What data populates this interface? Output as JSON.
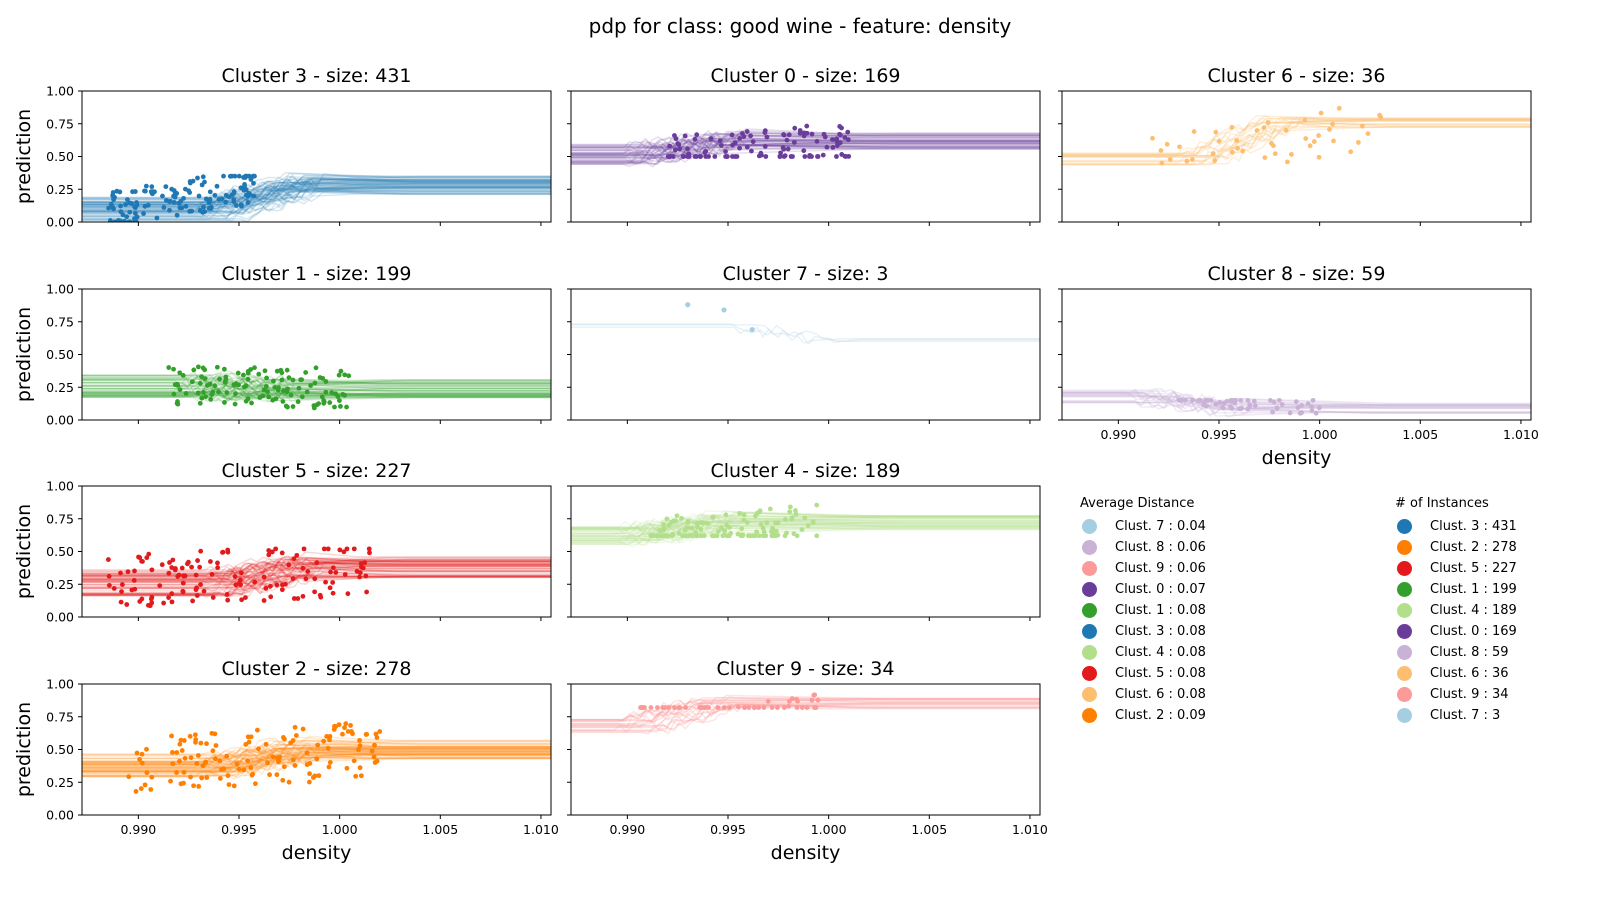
{
  "suptitle": "pdp for class: good wine - feature: density",
  "chart_data": {
    "type": "line",
    "xlabel": "density",
    "ylabel": "prediction",
    "xlim": [
      0.9872,
      1.0105
    ],
    "ylim": [
      0.0,
      1.0
    ],
    "xticks": [
      "0.990",
      "0.995",
      "1.000",
      "1.005",
      "1.010"
    ],
    "yticks": [
      "0.00",
      "0.25",
      "0.50",
      "0.75",
      "1.00"
    ],
    "panels": [
      {
        "title": "Cluster 3 - size: 431",
        "cluster": 3,
        "color": "#1f78b4",
        "left": 0.1,
        "right": 0.28,
        "step": 0.996,
        "n_lines": 60,
        "spread": 0.09,
        "pts_x": [
          0.9885,
          0.996
        ],
        "pts_y": [
          0.0,
          0.35
        ]
      },
      {
        "title": "Cluster 0 - size: 169",
        "cluster": 0,
        "color": "#6a3d9a",
        "left": 0.52,
        "right": 0.62,
        "step": 0.993,
        "n_lines": 45,
        "spread": 0.08,
        "pts_x": [
          0.992,
          1.001
        ],
        "pts_y": [
          0.5,
          0.85
        ]
      },
      {
        "title": "Cluster 6 - size: 36",
        "cluster": 6,
        "color": "#fdbf6f",
        "left": 0.47,
        "right": 0.75,
        "step": 0.996,
        "n_lines": 18,
        "spread": 0.06,
        "pts_x": [
          0.9915,
          1.0035
        ],
        "pts_y": [
          0.45,
          0.9
        ]
      },
      {
        "title": "Cluster 1 - size: 199",
        "cluster": 1,
        "color": "#33a02c",
        "left": 0.26,
        "right": 0.24,
        "step": 0.995,
        "n_lines": 50,
        "spread": 0.09,
        "pts_x": [
          0.9915,
          1.0005
        ],
        "pts_y": [
          0.03,
          0.42
        ]
      },
      {
        "title": "Cluster 7 - size: 3",
        "cluster": 7,
        "color": "#a6cee3",
        "left": 0.72,
        "right": 0.61,
        "step": 0.9975,
        "n_lines": 3,
        "spread": 0.02,
        "pts_x": [
          0.993,
          0.9948,
          0.9962
        ],
        "pts_y": [
          0.88,
          0.84,
          0.69
        ],
        "exact": true
      },
      {
        "title": "Cluster 8 - size: 59",
        "cluster": 8,
        "color": "#cab2d6",
        "left": 0.18,
        "right": 0.09,
        "step": 0.9935,
        "n_lines": 22,
        "spread": 0.05,
        "pts_x": [
          0.993,
          1.0
        ],
        "pts_y": [
          0.0,
          0.15
        ]
      },
      {
        "title": "Cluster 5 - size: 227",
        "cluster": 5,
        "color": "#e31a1c",
        "left": 0.26,
        "right": 0.38,
        "step": 0.996,
        "n_lines": 55,
        "spread": 0.1,
        "pts_x": [
          0.9885,
          1.0015
        ],
        "pts_y": [
          0.0,
          0.52
        ]
      },
      {
        "title": "Cluster 4 - size: 189",
        "cluster": 4,
        "color": "#b2df8a",
        "left": 0.62,
        "right": 0.72,
        "step": 0.9925,
        "n_lines": 50,
        "spread": 0.07,
        "pts_x": [
          0.991,
          0.9995
        ],
        "pts_y": [
          0.62,
          0.97
        ]
      },
      {
        "title": "Cluster 2 - size: 278",
        "cluster": 2,
        "color": "#ff7f00",
        "left": 0.38,
        "right": 0.5,
        "step": 0.996,
        "n_lines": 55,
        "spread": 0.09,
        "pts_x": [
          0.9895,
          1.002
        ],
        "pts_y": [
          0.18,
          0.72
        ]
      },
      {
        "title": "Cluster 9 - size: 34",
        "cluster": 9,
        "color": "#fb9a99",
        "left": 0.68,
        "right": 0.85,
        "step": 0.9925,
        "n_lines": 20,
        "spread": 0.05,
        "pts_x": [
          0.9905,
          0.9995
        ],
        "pts_y": [
          0.82,
          1.0
        ]
      }
    ],
    "legend_avg_distance": {
      "title": "Average Distance",
      "entries": [
        {
          "label": "Clust. 7 : 0.04",
          "color": "#a6cee3"
        },
        {
          "label": "Clust. 8 : 0.06",
          "color": "#cab2d6"
        },
        {
          "label": "Clust. 9 : 0.06",
          "color": "#fb9a99"
        },
        {
          "label": "Clust. 0 : 0.07",
          "color": "#6a3d9a"
        },
        {
          "label": "Clust. 1 : 0.08",
          "color": "#33a02c"
        },
        {
          "label": "Clust. 3 : 0.08",
          "color": "#1f78b4"
        },
        {
          "label": "Clust. 4 : 0.08",
          "color": "#b2df8a"
        },
        {
          "label": "Clust. 5 : 0.08",
          "color": "#e31a1c"
        },
        {
          "label": "Clust. 6 : 0.08",
          "color": "#fdbf6f"
        },
        {
          "label": "Clust. 2 : 0.09",
          "color": "#ff7f00"
        }
      ]
    },
    "legend_instances": {
      "title": "# of Instances",
      "entries": [
        {
          "label": "Clust. 3 : 431",
          "color": "#1f78b4"
        },
        {
          "label": "Clust. 2 : 278",
          "color": "#ff7f00"
        },
        {
          "label": "Clust. 5 : 227",
          "color": "#e31a1c"
        },
        {
          "label": "Clust. 1 : 199",
          "color": "#33a02c"
        },
        {
          "label": "Clust. 4 : 189",
          "color": "#b2df8a"
        },
        {
          "label": "Clust. 0 : 169",
          "color": "#6a3d9a"
        },
        {
          "label": "Clust. 8 : 59",
          "color": "#cab2d6"
        },
        {
          "label": "Clust. 6 : 36",
          "color": "#fdbf6f"
        },
        {
          "label": "Clust. 9 : 34",
          "color": "#fb9a99"
        },
        {
          "label": "Clust. 7 : 3",
          "color": "#a6cee3"
        }
      ]
    }
  }
}
